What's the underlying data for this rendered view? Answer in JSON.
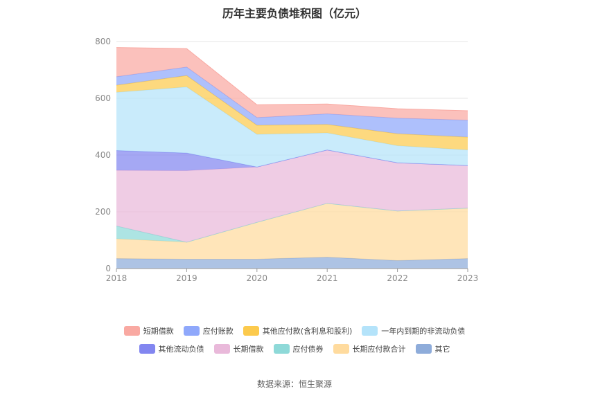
{
  "title": "历年主要负债堆积图（亿元）",
  "source": "数据来源：恒生聚源",
  "chart_data": {
    "type": "area",
    "stacked": true,
    "categories": [
      "2018",
      "2019",
      "2020",
      "2021",
      "2022",
      "2023"
    ],
    "ylim": [
      0,
      800
    ],
    "yticks": [
      0,
      200,
      400,
      600,
      800
    ],
    "grid": true,
    "legend_position": "bottom",
    "series": [
      {
        "name": "其它",
        "color": "#8EACDA",
        "values": [
          35,
          33,
          33,
          40,
          28,
          35
        ]
      },
      {
        "name": "长期应付款合计",
        "color": "#FFDB9E",
        "values": [
          70,
          60,
          130,
          190,
          175,
          178
        ]
      },
      {
        "name": "应付债券",
        "color": "#8ED9D8",
        "values": [
          45,
          0,
          0,
          0,
          0,
          0
        ]
      },
      {
        "name": "长期借款",
        "color": "#E9B9DA",
        "values": [
          196,
          252,
          195,
          188,
          170,
          150
        ]
      },
      {
        "name": "其他流动负债",
        "color": "#8286F0",
        "values": [
          70,
          62,
          0,
          0,
          0,
          0
        ]
      },
      {
        "name": "一年内到期的非流动负债",
        "color": "#B4E3FA",
        "values": [
          205,
          233,
          115,
          60,
          60,
          55
        ]
      },
      {
        "name": "其他应付款(含利息和股利)",
        "color": "#FCCA4D",
        "values": [
          25,
          40,
          32,
          30,
          42,
          45
        ]
      },
      {
        "name": "应付账款",
        "color": "#8FA8FB",
        "values": [
          30,
          30,
          27,
          37,
          55,
          60
        ]
      },
      {
        "name": "短期借款",
        "color": "#F9A9A2",
        "values": [
          103,
          65,
          45,
          35,
          33,
          33
        ]
      }
    ]
  },
  "legend_rows": [
    [
      "短期借款",
      "应付账款",
      "其他应付款(含利息和股利)",
      "一年内到期的非流动负债"
    ],
    [
      "其他流动负债",
      "长期借款",
      "应付债券",
      "长期应付款合计",
      "其它"
    ]
  ]
}
